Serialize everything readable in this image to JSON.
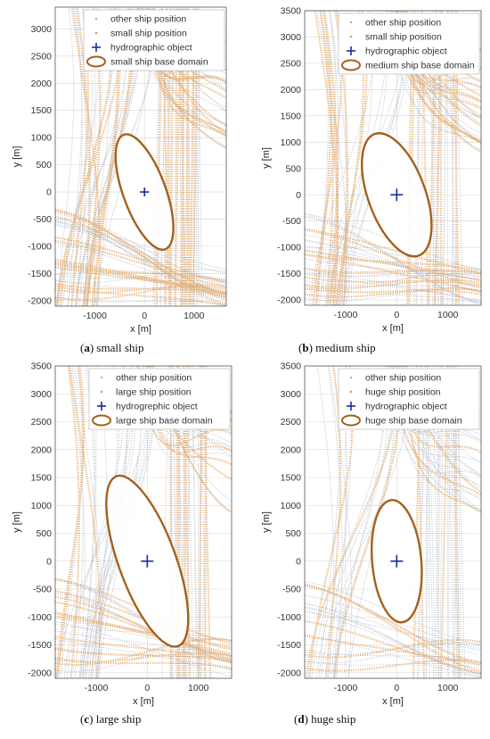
{
  "colors": {
    "other": "#8a93a3",
    "own": "#e2a25c",
    "hydro": "#1a2aa0",
    "domain": "#a4601e"
  },
  "chart_data": [
    {
      "type": "scatter",
      "caption_letter": "a",
      "caption_text": "small ship",
      "xlabel": "x [m]",
      "ylabel": "y [m]",
      "xlim": [
        -1800,
        1650
      ],
      "ylim": [
        -2100,
        3400
      ],
      "xticks": [
        -1000,
        0,
        1000
      ],
      "yticks": [
        -2000,
        -1500,
        -1000,
        -500,
        0,
        500,
        1000,
        1500,
        2000,
        2500,
        3000
      ],
      "legend": {
        "placement": "top-right",
        "entries": [
          "other ship position",
          "small ship position",
          "hydrographic object",
          "small ship base domain"
        ]
      },
      "hydrographic_object": {
        "x": 0,
        "y": 0
      },
      "domain_ellipse": {
        "cx": 0,
        "cy": 0,
        "rx": 430,
        "ry": 1120,
        "rotation_deg": -20
      },
      "density": 0.85
    },
    {
      "type": "scatter",
      "caption_letter": "b",
      "caption_text": "medium ship",
      "xlabel": "x [m]",
      "ylabel": "y [m]",
      "xlim": [
        -1800,
        1650
      ],
      "ylim": [
        -2100,
        3500
      ],
      "xticks": [
        -1000,
        0,
        1000
      ],
      "yticks": [
        -2000,
        -1500,
        -1000,
        -500,
        0,
        500,
        1000,
        1500,
        2000,
        2500,
        3000,
        3500
      ],
      "legend": {
        "placement": "top-right",
        "entries": [
          "other ship position",
          "small ship position",
          "hydrographic object",
          "medium ship base domain"
        ]
      },
      "hydrographic_object": {
        "x": 0,
        "y": 0
      },
      "domain_ellipse": {
        "cx": 0,
        "cy": 0,
        "rx": 560,
        "ry": 1230,
        "rotation_deg": -20
      },
      "density": 0.7
    },
    {
      "type": "scatter",
      "caption_letter": "c",
      "caption_text": "large ship",
      "xlabel": "x [m]",
      "ylabel": "y [m]",
      "xlim": [
        -1800,
        1650
      ],
      "ylim": [
        -2100,
        3500
      ],
      "xticks": [
        -1000,
        0,
        1000
      ],
      "yticks": [
        -2000,
        -1500,
        -1000,
        -500,
        0,
        500,
        1000,
        1500,
        2000,
        2500,
        3000,
        3500
      ],
      "legend": {
        "placement": "top-right",
        "entries": [
          "other ship position",
          "large ship position",
          "hydrogrephic object",
          "large ship base domain"
        ]
      },
      "hydrographic_object": {
        "x": 0,
        "y": 0
      },
      "domain_ellipse": {
        "cx": 0,
        "cy": 0,
        "rx": 560,
        "ry": 1620,
        "rotation_deg": -20
      },
      "density": 0.55
    },
    {
      "type": "scatter",
      "caption_letter": "d",
      "caption_text": "huge ship",
      "xlabel": "x [m]",
      "ylabel": "y [m]",
      "xlim": [
        -1800,
        1650
      ],
      "ylim": [
        -2100,
        3500
      ],
      "xticks": [
        -1000,
        0,
        1000
      ],
      "yticks": [
        -2000,
        -1500,
        -1000,
        -500,
        0,
        500,
        1000,
        1500,
        2000,
        2500,
        3000,
        3500
      ],
      "legend": {
        "placement": "top-right",
        "entries": [
          "other ship position",
          "huge ship position",
          "hydrographic object",
          "huge ship base domain"
        ]
      },
      "hydrographic_object": {
        "x": 0,
        "y": 0
      },
      "domain_ellipse": {
        "cx": 0,
        "cy": 0,
        "rx": 480,
        "ry": 1100,
        "rotation_deg": -5
      },
      "density": 0.3
    }
  ]
}
